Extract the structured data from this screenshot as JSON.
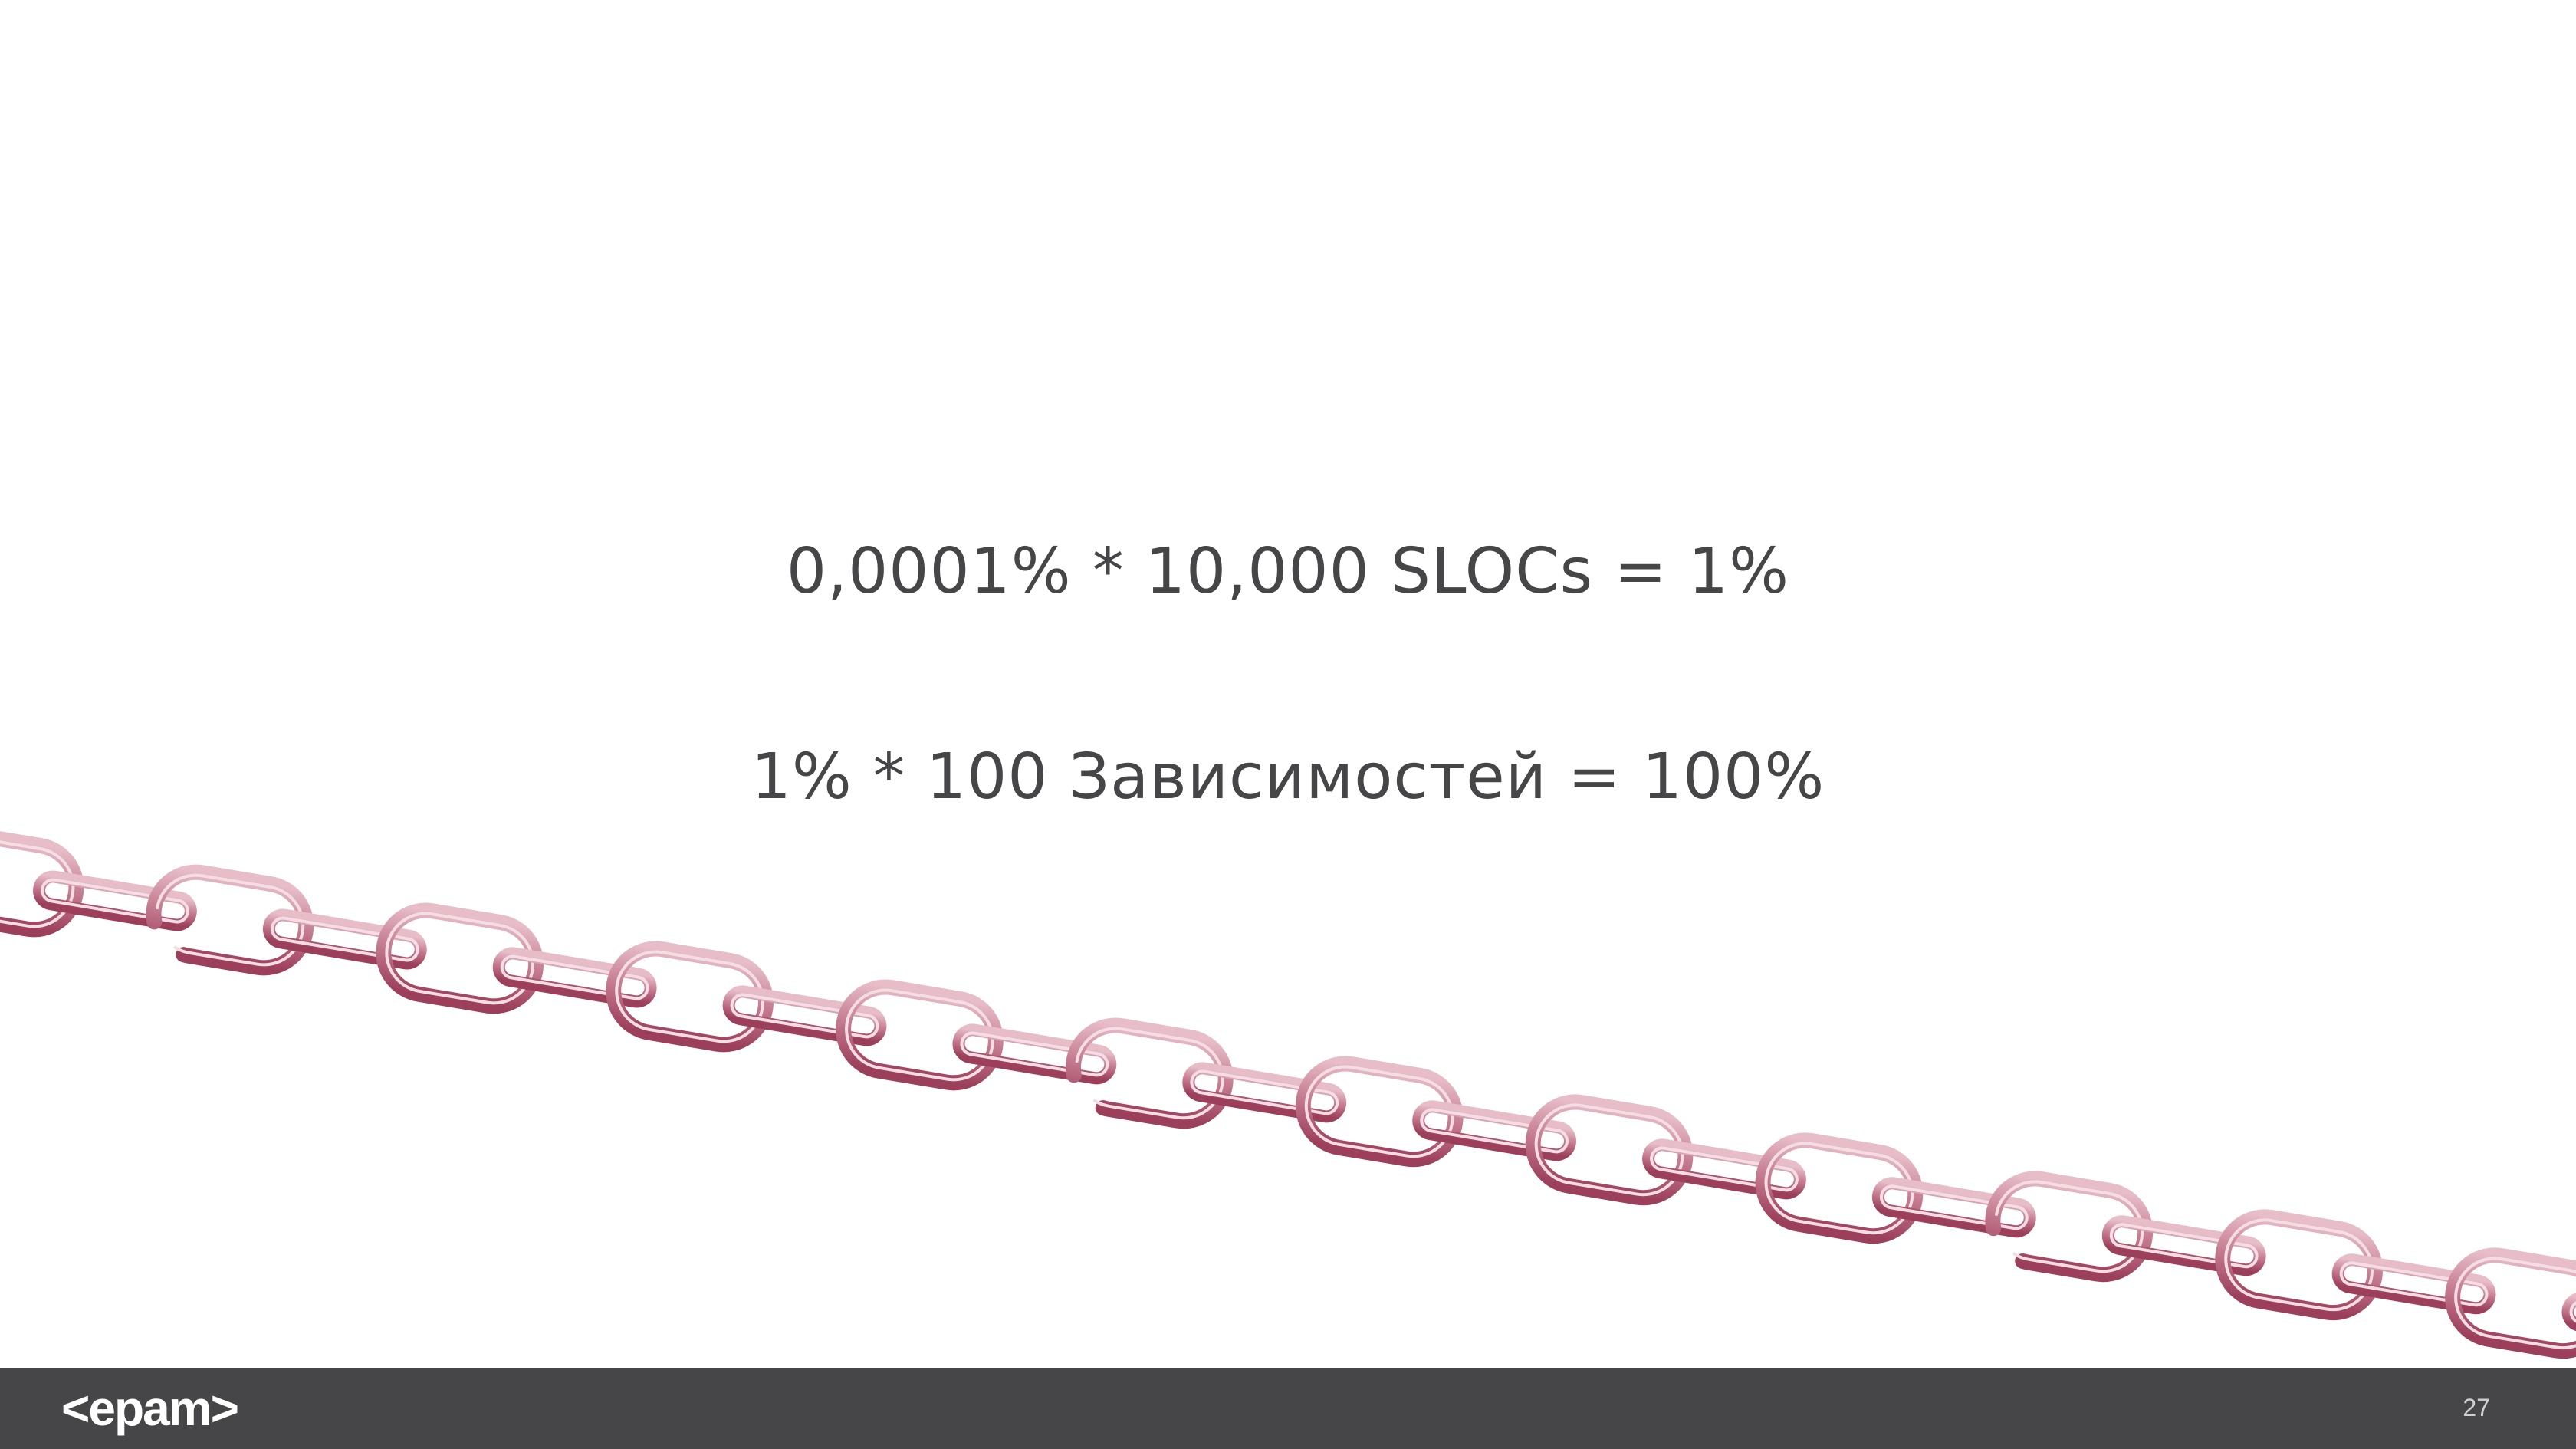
{
  "slide": {
    "equation_1": "0,0001% * 10,000 SLOCs = 1%",
    "equation_2": "1% * 100 Зависимостей = 100%",
    "page_number": "27",
    "logo_text": "<epam>"
  },
  "colors": {
    "background": "#ffffff",
    "text": "#464547",
    "footer": "#464547",
    "chain_fill": "#c98a9b",
    "chain_stroke": "#a34a63"
  },
  "icons": {
    "chain": "broken-chain-illustration",
    "logo": "epam-logo"
  }
}
